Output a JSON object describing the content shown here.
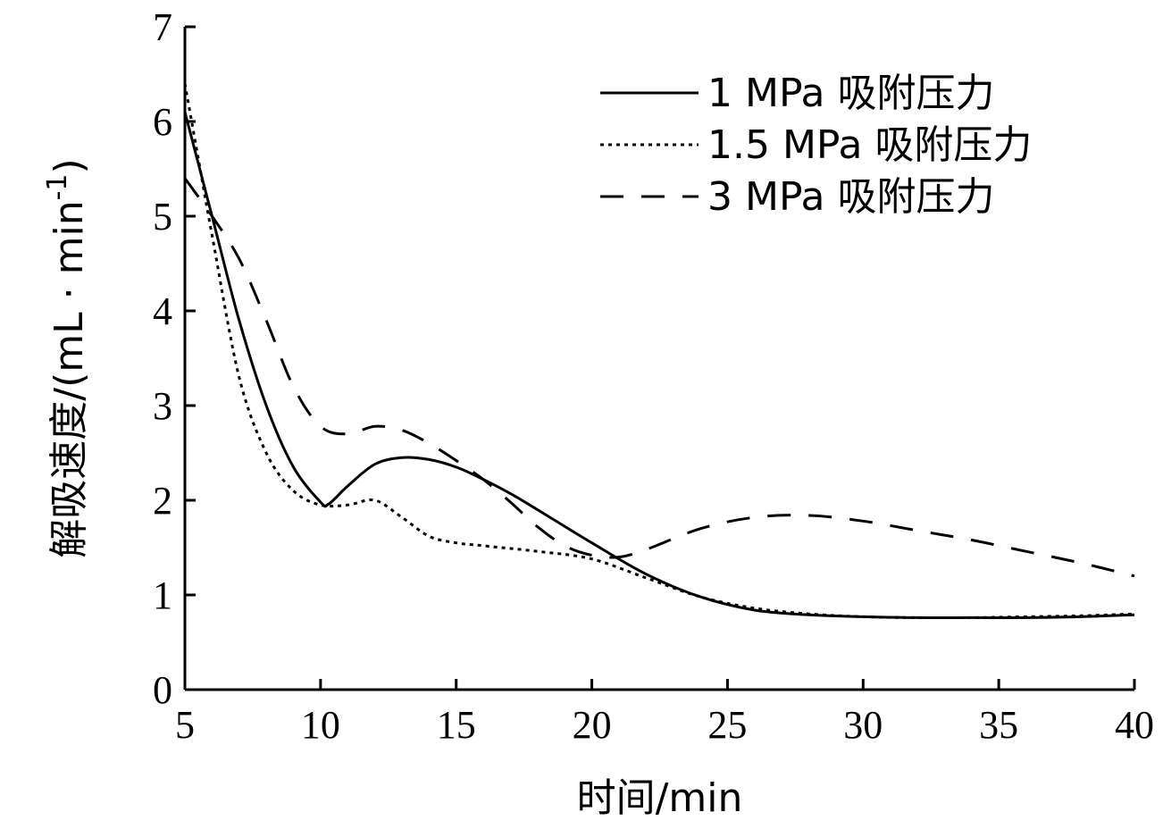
{
  "chart_data": {
    "type": "line",
    "title": "",
    "xlabel": "时间/min",
    "ylabel": "解吸速度/(mL · min",
    "ylabel_sup": "-1",
    "ylabel_close": ")",
    "xlim": [
      5,
      40
    ],
    "ylim": [
      0,
      7
    ],
    "xticks": [
      5,
      10,
      15,
      20,
      25,
      30,
      35,
      40
    ],
    "yticks": [
      0,
      1,
      2,
      3,
      4,
      5,
      6,
      7
    ],
    "grid": false,
    "legend_position": "top-right",
    "series": [
      {
        "name": "1 MPa 吸附压力",
        "style": "solid",
        "x": [
          5,
          6,
          7,
          8,
          9,
          10,
          10.3,
          11,
          12,
          13,
          14,
          15,
          16,
          17,
          18,
          20,
          22,
          24,
          26,
          28,
          30,
          32,
          34,
          36,
          38,
          40
        ],
        "y": [
          6.1,
          5.0,
          3.9,
          3.0,
          2.35,
          1.98,
          1.96,
          2.15,
          2.38,
          2.45,
          2.43,
          2.35,
          2.22,
          2.07,
          1.9,
          1.55,
          1.22,
          0.98,
          0.84,
          0.79,
          0.77,
          0.76,
          0.76,
          0.76,
          0.77,
          0.79
        ]
      },
      {
        "name": "1.5 MPa 吸附压力",
        "style": "dotted",
        "x": [
          5,
          5.5,
          6,
          7,
          8,
          9,
          10,
          11,
          12,
          13,
          14,
          15,
          16,
          18,
          20,
          22,
          24,
          26,
          28,
          30,
          32,
          34,
          36,
          38,
          40
        ],
        "y": [
          6.4,
          5.6,
          4.8,
          3.3,
          2.5,
          2.1,
          1.95,
          1.95,
          2.0,
          1.82,
          1.62,
          1.55,
          1.52,
          1.46,
          1.38,
          1.18,
          0.98,
          0.86,
          0.8,
          0.77,
          0.76,
          0.76,
          0.77,
          0.78,
          0.8
        ]
      },
      {
        "name": "3 MPa 吸附压力",
        "style": "dashed",
        "x": [
          5,
          6,
          7,
          8,
          9,
          10,
          11,
          12,
          13,
          14,
          15,
          16,
          17,
          18,
          19,
          20,
          21,
          22,
          24,
          26,
          28,
          30,
          32,
          34,
          36,
          38,
          40
        ],
        "y": [
          5.4,
          5.0,
          4.55,
          3.9,
          3.2,
          2.78,
          2.7,
          2.78,
          2.74,
          2.6,
          2.42,
          2.22,
          1.98,
          1.72,
          1.52,
          1.42,
          1.4,
          1.48,
          1.7,
          1.82,
          1.84,
          1.78,
          1.68,
          1.58,
          1.46,
          1.34,
          1.2
        ]
      }
    ]
  }
}
